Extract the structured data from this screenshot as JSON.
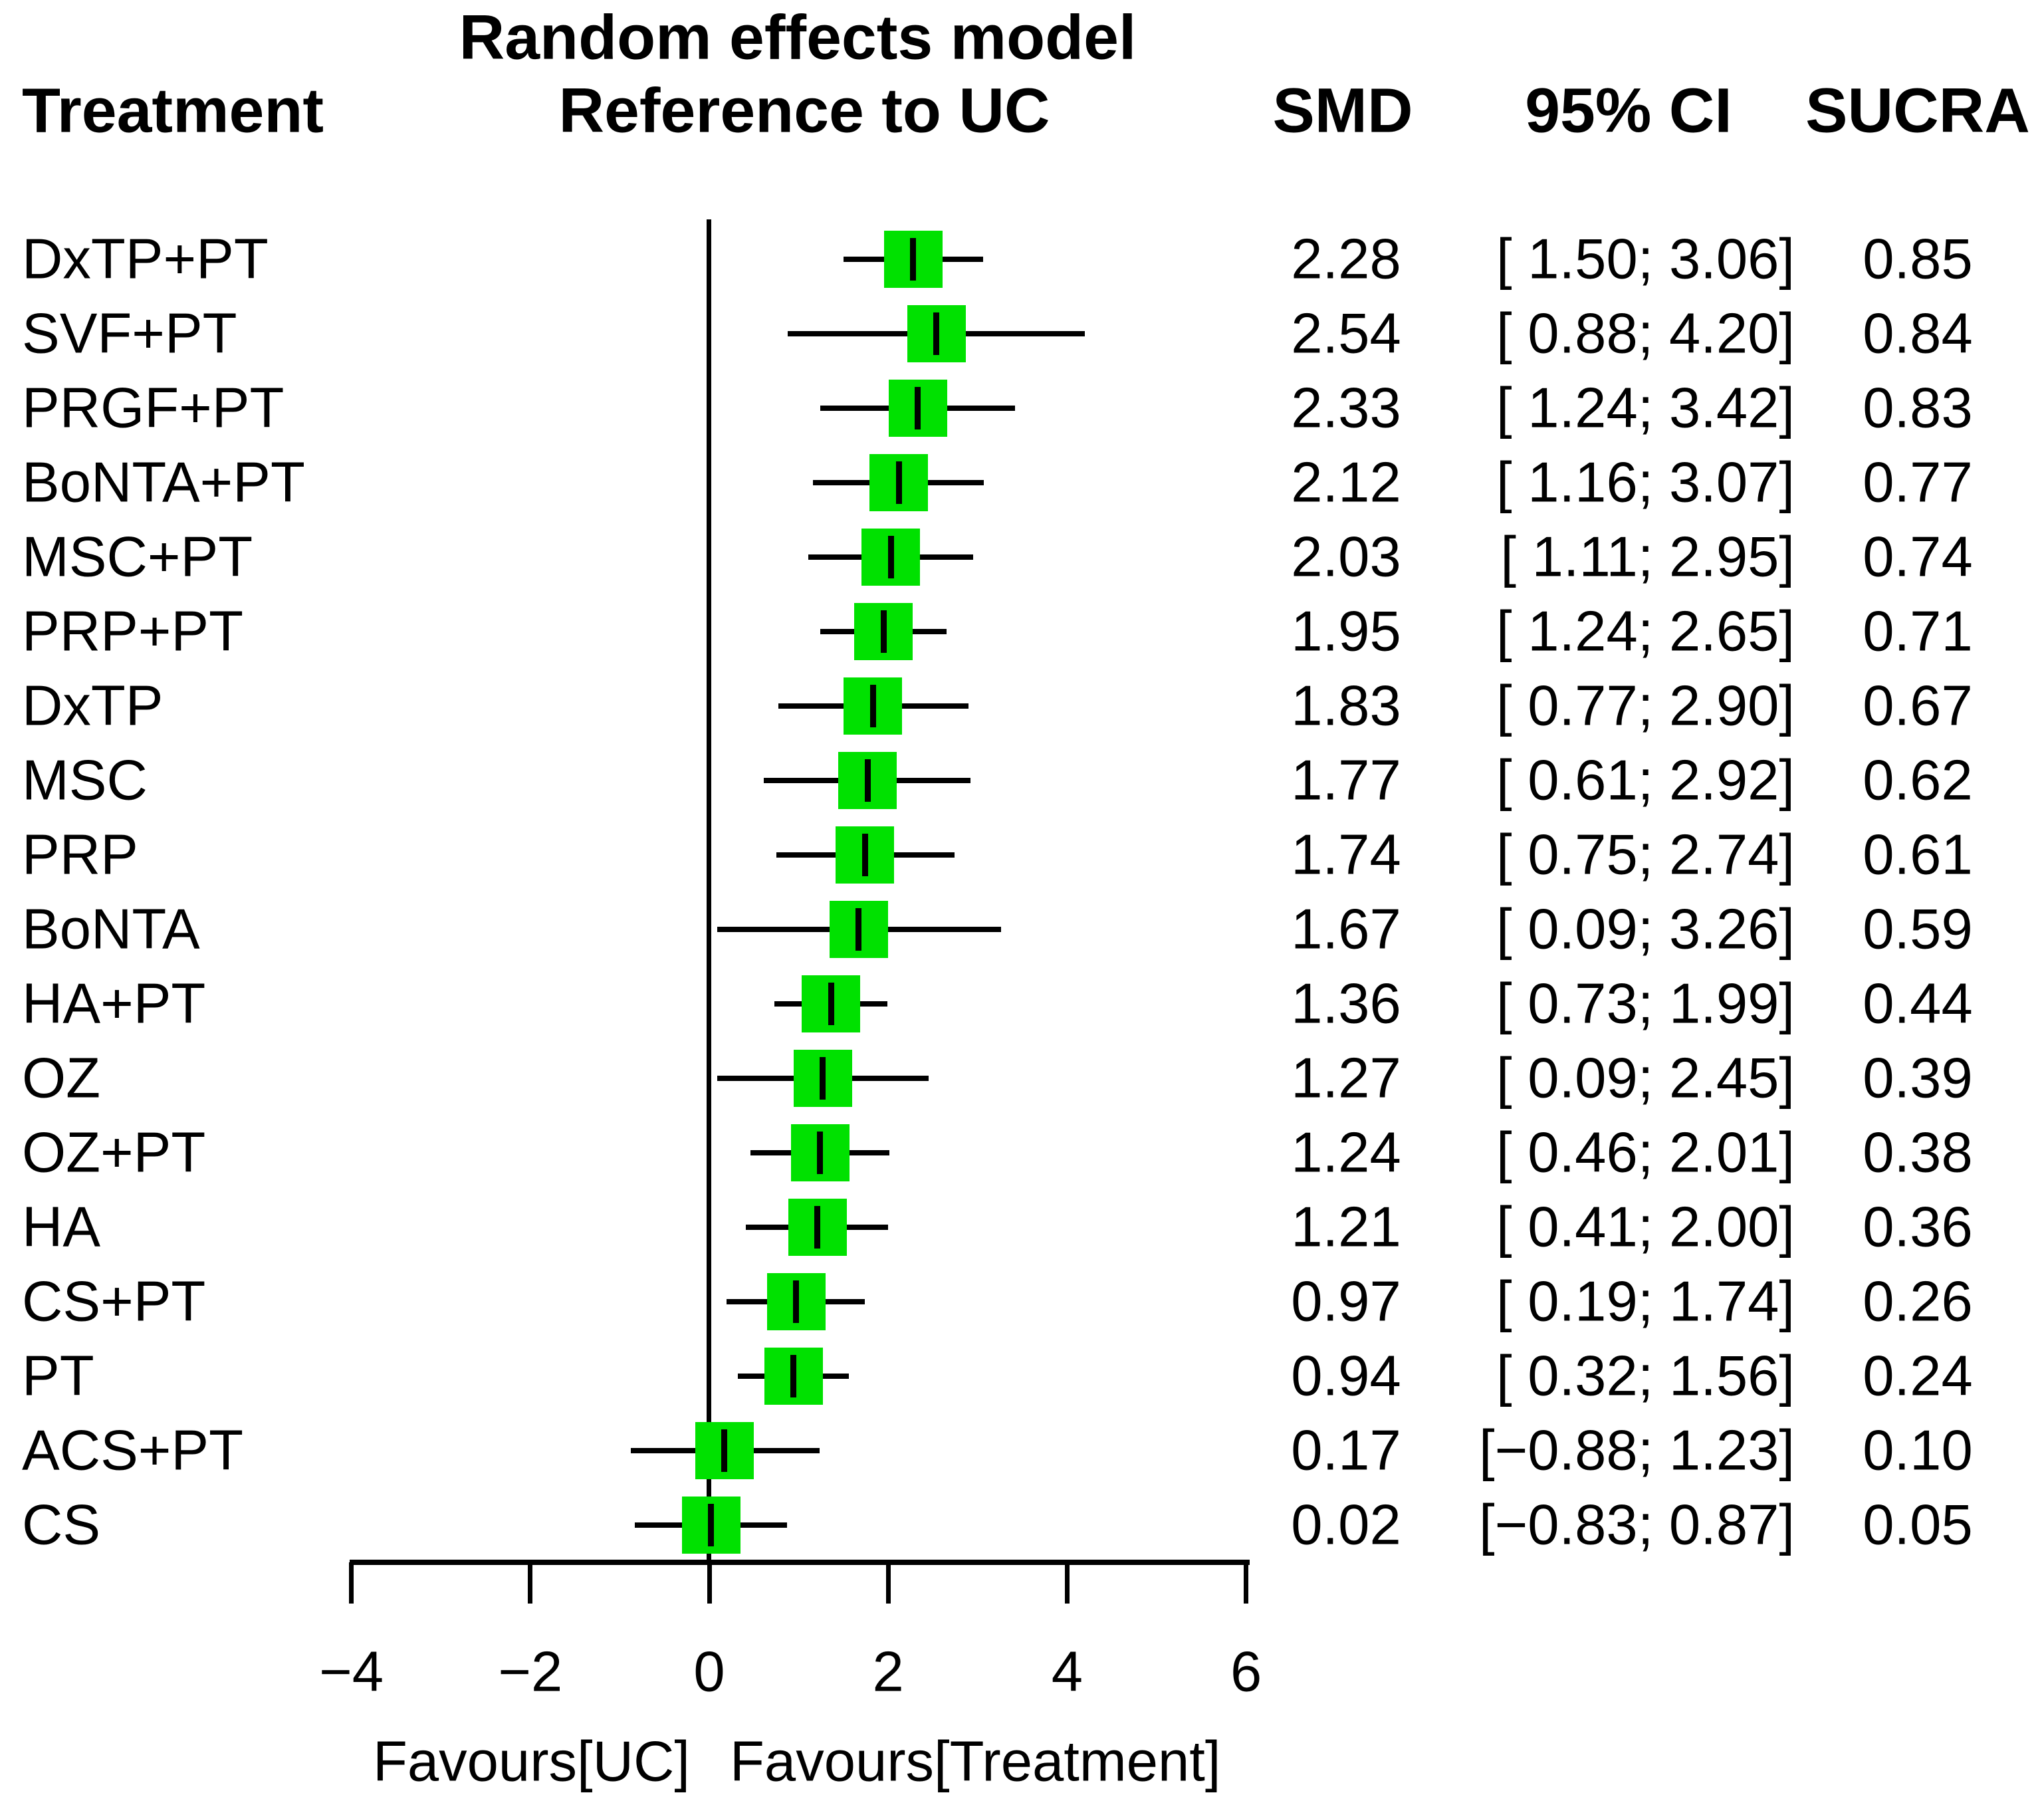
{
  "header": {
    "treatment": "Treatment",
    "model_line1": "Random effects model",
    "model_line2": "Reference to UC",
    "smd": "SMD",
    "ci": "95% CI",
    "sucra": "SUCRA"
  },
  "chart_data": {
    "type": "forest",
    "title": "Random effects model",
    "subtitle": "Reference to UC",
    "effect_measure": "SMD",
    "columns": [
      "Treatment",
      "SMD",
      "95% CI",
      "SUCRA"
    ],
    "reference_value": 0,
    "xlim": [
      -4.7,
      6.1
    ],
    "x_ticks": [
      {
        "value": -4,
        "label": "−4"
      },
      {
        "value": -2,
        "label": "−2"
      },
      {
        "value": 0,
        "label": "0"
      },
      {
        "value": 2,
        "label": "2"
      },
      {
        "value": 4,
        "label": "4"
      },
      {
        "value": 6,
        "label": "6"
      }
    ],
    "x_axis_annotations": {
      "left": "Favours[UC]",
      "right": "Favours[Treatment]"
    },
    "marker_color": "#00E100",
    "rows": [
      {
        "label": "DxTP+PT",
        "smd": 2.28,
        "smd_text": "2.28",
        "ci_low": 1.5,
        "ci_high": 3.06,
        "ci_text": "[ 1.50; 3.06]",
        "sucra": 0.85,
        "sucra_text": "0.85"
      },
      {
        "label": "SVF+PT",
        "smd": 2.54,
        "smd_text": "2.54",
        "ci_low": 0.88,
        "ci_high": 4.2,
        "ci_text": "[ 0.88; 4.20]",
        "sucra": 0.84,
        "sucra_text": "0.84"
      },
      {
        "label": "PRGF+PT",
        "smd": 2.33,
        "smd_text": "2.33",
        "ci_low": 1.24,
        "ci_high": 3.42,
        "ci_text": "[ 1.24; 3.42]",
        "sucra": 0.83,
        "sucra_text": "0.83"
      },
      {
        "label": "BoNTA+PT",
        "smd": 2.12,
        "smd_text": "2.12",
        "ci_low": 1.16,
        "ci_high": 3.07,
        "ci_text": "[ 1.16; 3.07]",
        "sucra": 0.77,
        "sucra_text": "0.77"
      },
      {
        "label": "MSC+PT",
        "smd": 2.03,
        "smd_text": "2.03",
        "ci_low": 1.11,
        "ci_high": 2.95,
        "ci_text": "[ 1.11; 2.95]",
        "sucra": 0.74,
        "sucra_text": "0.74"
      },
      {
        "label": "PRP+PT",
        "smd": 1.95,
        "smd_text": "1.95",
        "ci_low": 1.24,
        "ci_high": 2.65,
        "ci_text": "[ 1.24; 2.65]",
        "sucra": 0.71,
        "sucra_text": "0.71"
      },
      {
        "label": "DxTP",
        "smd": 1.83,
        "smd_text": "1.83",
        "ci_low": 0.77,
        "ci_high": 2.9,
        "ci_text": "[ 0.77; 2.90]",
        "sucra": 0.67,
        "sucra_text": "0.67"
      },
      {
        "label": "MSC",
        "smd": 1.77,
        "smd_text": "1.77",
        "ci_low": 0.61,
        "ci_high": 2.92,
        "ci_text": "[ 0.61; 2.92]",
        "sucra": 0.62,
        "sucra_text": "0.62"
      },
      {
        "label": "PRP",
        "smd": 1.74,
        "smd_text": "1.74",
        "ci_low": 0.75,
        "ci_high": 2.74,
        "ci_text": "[ 0.75; 2.74]",
        "sucra": 0.61,
        "sucra_text": "0.61"
      },
      {
        "label": "BoNTA",
        "smd": 1.67,
        "smd_text": "1.67",
        "ci_low": 0.09,
        "ci_high": 3.26,
        "ci_text": "[ 0.09; 3.26]",
        "sucra": 0.59,
        "sucra_text": "0.59"
      },
      {
        "label": "HA+PT",
        "smd": 1.36,
        "smd_text": "1.36",
        "ci_low": 0.73,
        "ci_high": 1.99,
        "ci_text": "[ 0.73; 1.99]",
        "sucra": 0.44,
        "sucra_text": "0.44"
      },
      {
        "label": "OZ",
        "smd": 1.27,
        "smd_text": "1.27",
        "ci_low": 0.09,
        "ci_high": 2.45,
        "ci_text": "[ 0.09; 2.45]",
        "sucra": 0.39,
        "sucra_text": "0.39"
      },
      {
        "label": "OZ+PT",
        "smd": 1.24,
        "smd_text": "1.24",
        "ci_low": 0.46,
        "ci_high": 2.01,
        "ci_text": "[ 0.46; 2.01]",
        "sucra": 0.38,
        "sucra_text": "0.38"
      },
      {
        "label": "HA",
        "smd": 1.21,
        "smd_text": "1.21",
        "ci_low": 0.41,
        "ci_high": 2.0,
        "ci_text": "[ 0.41; 2.00]",
        "sucra": 0.36,
        "sucra_text": "0.36"
      },
      {
        "label": "CS+PT",
        "smd": 0.97,
        "smd_text": "0.97",
        "ci_low": 0.19,
        "ci_high": 1.74,
        "ci_text": "[ 0.19; 1.74]",
        "sucra": 0.26,
        "sucra_text": "0.26"
      },
      {
        "label": "PT",
        "smd": 0.94,
        "smd_text": "0.94",
        "ci_low": 0.32,
        "ci_high": 1.56,
        "ci_text": "[ 0.32; 1.56]",
        "sucra": 0.24,
        "sucra_text": "0.24"
      },
      {
        "label": "ACS+PT",
        "smd": 0.17,
        "smd_text": "0.17",
        "ci_low": -0.88,
        "ci_high": 1.23,
        "ci_text": "[−0.88; 1.23]",
        "sucra": 0.1,
        "sucra_text": "0.10"
      },
      {
        "label": "CS",
        "smd": 0.02,
        "smd_text": "0.02",
        "ci_low": -0.83,
        "ci_high": 0.87,
        "ci_text": "[−0.83; 0.87]",
        "sucra": 0.05,
        "sucra_text": "0.05"
      }
    ]
  }
}
